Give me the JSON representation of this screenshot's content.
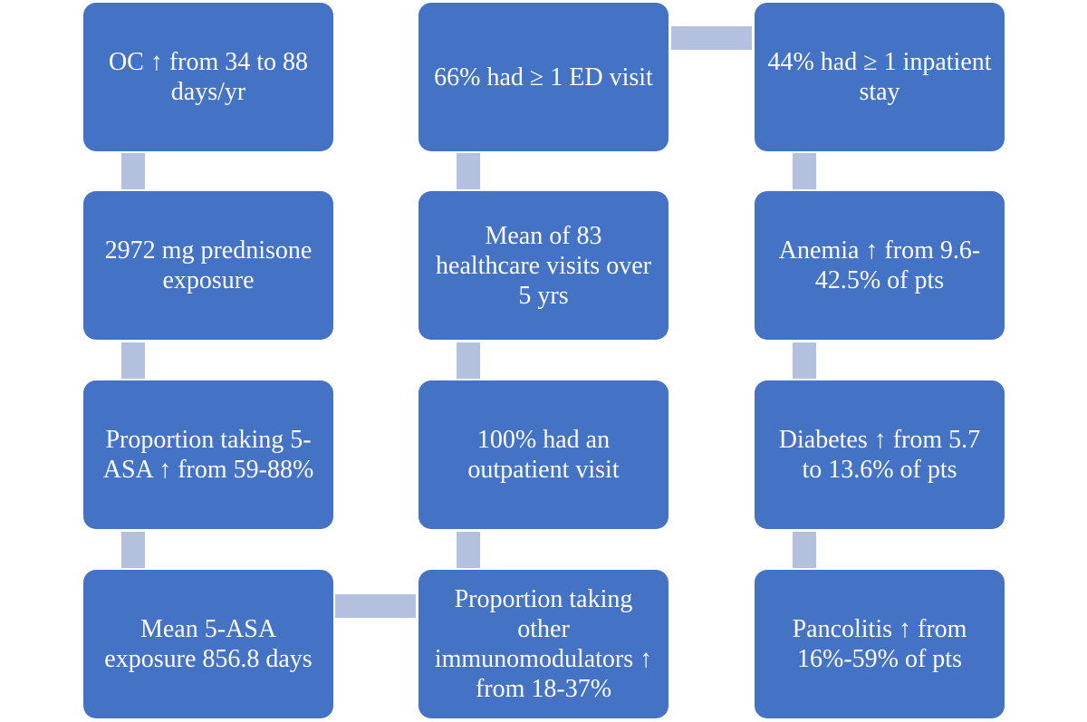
{
  "columns": [
    {
      "boxes": [
        {
          "text": "OC ↑ from 34 to 88 days/yr"
        },
        {
          "text": "2972 mg prednisone exposure"
        },
        {
          "text": "Proportion taking 5-ASA ↑ from 59-88%"
        },
        {
          "text": "Mean 5-ASA exposure 856.8 days"
        }
      ]
    },
    {
      "boxes": [
        {
          "text": "66% had ≥ 1 ED visit"
        },
        {
          "text": "Mean of 83 healthcare visits over 5 yrs"
        },
        {
          "text": "100% had an outpatient visit"
        },
        {
          "text": "Proportion taking other immunomodulators ↑ from 18-37%"
        }
      ]
    },
    {
      "boxes": [
        {
          "text": "44% had ≥ 1 inpatient stay"
        },
        {
          "text": "Anemia ↑ from 9.6-42.5% of pts"
        },
        {
          "text": "Diabetes ↑ from 5.7 to 13.6% of pts"
        },
        {
          "text": "Pancolitis ↑ from 16%-59% of pts"
        }
      ]
    }
  ],
  "colors": {
    "box_fill": "#4472c4",
    "box_text": "#ffffff",
    "connector": "#b4c1de",
    "background": "#ffffff"
  }
}
